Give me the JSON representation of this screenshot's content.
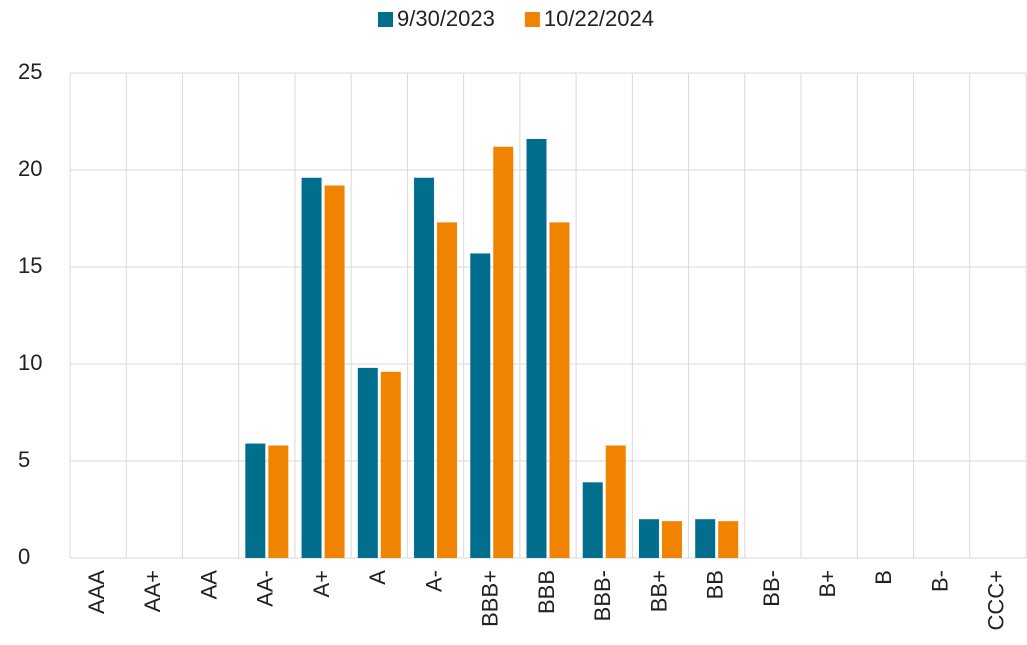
{
  "chart_data": {
    "type": "bar",
    "categories": [
      "AAA",
      "AA+",
      "AA",
      "AA-",
      "A+",
      "A",
      "A-",
      "BBB+",
      "BBB",
      "BBB-",
      "BB+",
      "BB",
      "BB-",
      "B+",
      "B",
      "B-",
      "CCC+"
    ],
    "series": [
      {
        "name": "9/30/2023",
        "color": "#006e8c",
        "values": [
          0,
          0,
          0,
          5.9,
          19.6,
          9.8,
          19.6,
          15.7,
          21.6,
          3.9,
          2,
          2,
          0,
          0,
          0,
          0,
          0
        ]
      },
      {
        "name": "10/22/2024",
        "color": "#f08300",
        "values": [
          0,
          0,
          0,
          5.8,
          19.2,
          9.6,
          17.3,
          21.2,
          17.3,
          5.8,
          1.9,
          1.9,
          0,
          0,
          0,
          0,
          0
        ]
      }
    ],
    "ylim": [
      0,
      25
    ],
    "yticks": [
      0,
      5,
      10,
      15,
      20,
      25
    ],
    "grid": true,
    "legend": "top"
  }
}
